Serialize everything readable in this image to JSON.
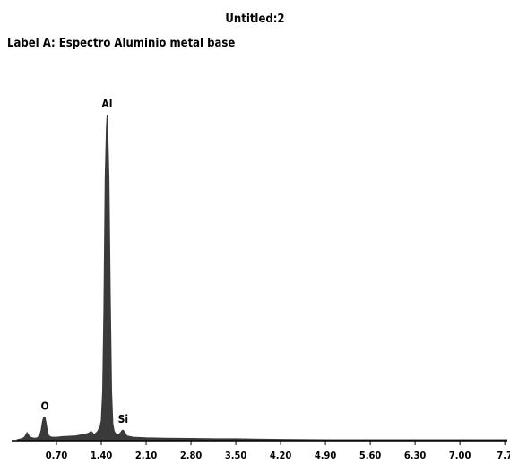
{
  "window_title": "Untitled:2",
  "spectrum_label": "Label A: Espectro Aluminio metal base",
  "chart_data": {
    "type": "line",
    "title": "Untitled:2",
    "subtitle": "Label A: Espectro Aluminio metal base",
    "xlabel": "",
    "ylabel": "",
    "xlim": [
      0.0,
      7.74
    ],
    "ylim": [
      0,
      100
    ],
    "grid": false,
    "legend": "none",
    "x_ticks": [
      0.7,
      1.4,
      2.1,
      2.8,
      3.5,
      4.2,
      4.9,
      5.6,
      6.3,
      7.0,
      7.7
    ],
    "x_tick_labels": [
      "0.70",
      "1.40",
      "2.10",
      "2.80",
      "3.50",
      "4.20",
      "4.90",
      "5.60",
      "6.30",
      "7.00",
      "7.7"
    ],
    "peaks": [
      {
        "element": "O",
        "x": 0.52,
        "y": 7
      },
      {
        "element": "Al",
        "x": 1.49,
        "y": 100
      },
      {
        "element": "Si",
        "x": 1.74,
        "y": 3
      }
    ],
    "series": [
      {
        "color": "#3a3a3a",
        "x": [
          0.08,
          0.15,
          0.2,
          0.24,
          0.28,
          0.32,
          0.36,
          0.4,
          0.44,
          0.46,
          0.48,
          0.5,
          0.52,
          0.54,
          0.56,
          0.58,
          0.62,
          0.7,
          0.8,
          0.9,
          1.0,
          1.1,
          1.2,
          1.24,
          1.26,
          1.28,
          1.3,
          1.34,
          1.38,
          1.4,
          1.42,
          1.44,
          1.46,
          1.48,
          1.49,
          1.5,
          1.52,
          1.54,
          1.56,
          1.58,
          1.6,
          1.62,
          1.66,
          1.7,
          1.72,
          1.74,
          1.76,
          1.8,
          1.9,
          2.1,
          2.4,
          2.8,
          3.2,
          3.5,
          3.8,
          4.2,
          4.9,
          5.6,
          6.3,
          7.0,
          7.74
        ],
        "y": [
          0,
          0.3,
          0.8,
          2.2,
          1.0,
          0.6,
          0.5,
          0.6,
          1.5,
          3.0,
          5.5,
          7.0,
          7.0,
          5.0,
          2.5,
          1.3,
          0.8,
          0.8,
          1.0,
          1.1,
          1.2,
          1.6,
          2.0,
          2.6,
          2.3,
          1.6,
          1.8,
          2.5,
          4.0,
          6.0,
          15.0,
          40.0,
          80.0,
          96.0,
          100.0,
          96.0,
          80.0,
          45.0,
          15.0,
          5.0,
          2.8,
          2.0,
          1.5,
          2.2,
          2.8,
          3.0,
          2.5,
          1.2,
          0.8,
          0.6,
          0.5,
          0.4,
          0.3,
          0.3,
          0.2,
          0.1,
          0,
          0,
          0,
          0,
          0
        ]
      }
    ]
  }
}
